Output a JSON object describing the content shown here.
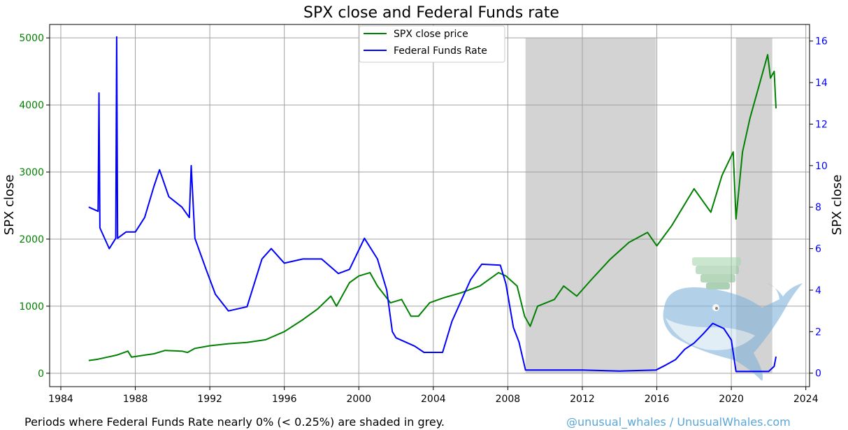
{
  "chart_data": {
    "type": "line",
    "title": "SPX close and Federal Funds rate",
    "ylabel_left": "SPX close",
    "ylabel_right": "SPX close",
    "xlim": [
      1983.4,
      2024.2
    ],
    "ylim_left": [
      -200,
      5200
    ],
    "ylim_right": [
      -0.65,
      16.8
    ],
    "x_ticks": [
      1984,
      1988,
      1992,
      1996,
      2000,
      2004,
      2008,
      2012,
      2016,
      2020,
      2024
    ],
    "y_ticks_left": [
      0,
      1000,
      2000,
      3000,
      4000,
      5000
    ],
    "y_ticks_right": [
      0,
      2,
      4,
      6,
      8,
      10,
      12,
      14,
      16
    ],
    "grid": true,
    "legend_position": "top-center",
    "shaded_periods": [
      [
        2008.95,
        2015.95
      ],
      [
        2020.25,
        2022.2
      ]
    ],
    "series": [
      {
        "name": "SPX close price",
        "axis": "left",
        "color": "#008000",
        "points": [
          [
            1985.5,
            190
          ],
          [
            1986.0,
            210
          ],
          [
            1986.5,
            240
          ],
          [
            1987.0,
            270
          ],
          [
            1987.6,
            330
          ],
          [
            1987.8,
            240
          ],
          [
            1988.5,
            270
          ],
          [
            1989.0,
            290
          ],
          [
            1989.6,
            340
          ],
          [
            1990.5,
            330
          ],
          [
            1990.8,
            310
          ],
          [
            1991.2,
            370
          ],
          [
            1992.0,
            410
          ],
          [
            1993.0,
            440
          ],
          [
            1994.0,
            460
          ],
          [
            1995.0,
            500
          ],
          [
            1996.0,
            620
          ],
          [
            1997.0,
            800
          ],
          [
            1997.8,
            960
          ],
          [
            1998.5,
            1150
          ],
          [
            1998.8,
            1000
          ],
          [
            1999.5,
            1350
          ],
          [
            2000.0,
            1450
          ],
          [
            2000.6,
            1500
          ],
          [
            2001.0,
            1300
          ],
          [
            2001.7,
            1050
          ],
          [
            2002.3,
            1100
          ],
          [
            2002.8,
            850
          ],
          [
            2003.2,
            850
          ],
          [
            2003.8,
            1050
          ],
          [
            2004.5,
            1120
          ],
          [
            2005.5,
            1200
          ],
          [
            2006.5,
            1300
          ],
          [
            2007.5,
            1500
          ],
          [
            2007.9,
            1450
          ],
          [
            2008.5,
            1300
          ],
          [
            2008.9,
            850
          ],
          [
            2009.2,
            700
          ],
          [
            2009.6,
            1000
          ],
          [
            2010.5,
            1100
          ],
          [
            2011.0,
            1300
          ],
          [
            2011.7,
            1150
          ],
          [
            2012.5,
            1400
          ],
          [
            2013.5,
            1700
          ],
          [
            2014.5,
            1950
          ],
          [
            2015.5,
            2100
          ],
          [
            2016.0,
            1900
          ],
          [
            2016.8,
            2200
          ],
          [
            2018.0,
            2750
          ],
          [
            2018.9,
            2400
          ],
          [
            2019.5,
            2950
          ],
          [
            2020.1,
            3300
          ],
          [
            2020.25,
            2300
          ],
          [
            2020.6,
            3300
          ],
          [
            2021.0,
            3800
          ],
          [
            2021.5,
            4300
          ],
          [
            2021.95,
            4750
          ],
          [
            2022.1,
            4400
          ],
          [
            2022.3,
            4500
          ],
          [
            2022.4,
            3950
          ]
        ]
      },
      {
        "name": "Federal Funds Rate",
        "axis": "right",
        "color": "#0000ff",
        "points": [
          [
            1985.5,
            8.0
          ],
          [
            1986.0,
            7.8
          ],
          [
            1986.05,
            13.5
          ],
          [
            1986.1,
            7.0
          ],
          [
            1986.6,
            6.0
          ],
          [
            1986.95,
            6.5
          ],
          [
            1987.0,
            16.2
          ],
          [
            1987.05,
            6.5
          ],
          [
            1987.5,
            6.8
          ],
          [
            1988.0,
            6.8
          ],
          [
            1988.5,
            7.5
          ],
          [
            1989.0,
            9.0
          ],
          [
            1989.3,
            9.8
          ],
          [
            1989.8,
            8.5
          ],
          [
            1990.5,
            8.0
          ],
          [
            1990.9,
            7.5
          ],
          [
            1991.0,
            10.0
          ],
          [
            1991.2,
            6.5
          ],
          [
            1991.8,
            5.0
          ],
          [
            1992.3,
            3.8
          ],
          [
            1993.0,
            3.0
          ],
          [
            1994.0,
            3.2
          ],
          [
            1994.8,
            5.5
          ],
          [
            1995.3,
            6.0
          ],
          [
            1996.0,
            5.3
          ],
          [
            1997.0,
            5.5
          ],
          [
            1998.0,
            5.5
          ],
          [
            1998.9,
            4.8
          ],
          [
            1999.5,
            5.0
          ],
          [
            2000.3,
            6.5
          ],
          [
            2001.0,
            5.5
          ],
          [
            2001.5,
            4.0
          ],
          [
            2001.8,
            2.0
          ],
          [
            2002.0,
            1.7
          ],
          [
            2003.0,
            1.3
          ],
          [
            2003.5,
            1.0
          ],
          [
            2004.5,
            1.0
          ],
          [
            2005.0,
            2.5
          ],
          [
            2006.0,
            4.5
          ],
          [
            2006.6,
            5.25
          ],
          [
            2007.6,
            5.2
          ],
          [
            2007.9,
            4.3
          ],
          [
            2008.3,
            2.2
          ],
          [
            2008.6,
            1.5
          ],
          [
            2008.95,
            0.15
          ],
          [
            2010.0,
            0.15
          ],
          [
            2012.0,
            0.15
          ],
          [
            2014.0,
            0.1
          ],
          [
            2015.95,
            0.15
          ],
          [
            2016.5,
            0.4
          ],
          [
            2017.0,
            0.65
          ],
          [
            2017.5,
            1.15
          ],
          [
            2018.0,
            1.45
          ],
          [
            2018.5,
            1.9
          ],
          [
            2019.0,
            2.4
          ],
          [
            2019.6,
            2.15
          ],
          [
            2020.0,
            1.6
          ],
          [
            2020.25,
            0.08
          ],
          [
            2021.0,
            0.08
          ],
          [
            2022.0,
            0.08
          ],
          [
            2022.3,
            0.33
          ],
          [
            2022.4,
            0.8
          ]
        ]
      }
    ]
  },
  "footer": {
    "note": "Periods where Federal Funds Rate nearly 0% (< 0.25%) are shaded in grey.",
    "credit": "@unusual_whales / UnusualWhales.com"
  }
}
